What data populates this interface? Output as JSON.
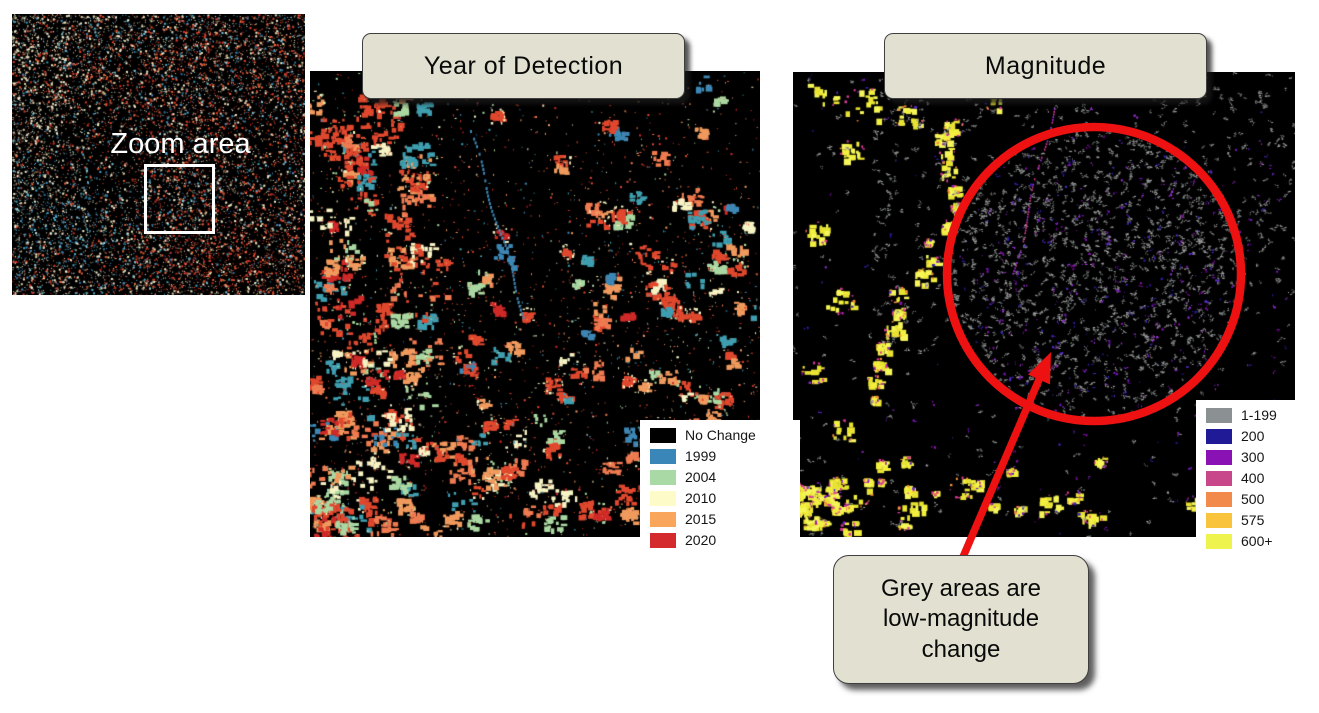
{
  "page": {
    "background": "#ffffff",
    "map_background": "#000000"
  },
  "overview": {
    "label": "Zoom area"
  },
  "panels": {
    "year": {
      "title": "Year of Detection",
      "legend": [
        {
          "label": "No Change",
          "color": "#000000"
        },
        {
          "label": "1999",
          "color": "#3a86b8"
        },
        {
          "label": "2004",
          "color": "#a9d9a4"
        },
        {
          "label": "2010",
          "color": "#fdfcc8"
        },
        {
          "label": "2015",
          "color": "#f9a55c"
        },
        {
          "label": "2020",
          "color": "#d4292d"
        }
      ]
    },
    "magnitude": {
      "title": "Magnitude",
      "legend": [
        {
          "label": "1-199",
          "color": "#8b9192"
        },
        {
          "label": "200",
          "color": "#201a96"
        },
        {
          "label": "300",
          "color": "#8a12b4"
        },
        {
          "label": "400",
          "color": "#c8478b"
        },
        {
          "label": "500",
          "color": "#f28a4c"
        },
        {
          "label": "575",
          "color": "#f9c43b"
        },
        {
          "label": "600+",
          "color": "#eef34d"
        }
      ]
    }
  },
  "callout": {
    "text": "Grey areas are low-magnitude change"
  },
  "annotations": {
    "circle_color": "#ee1111",
    "arrow_color": "#ee1111"
  },
  "style_colors": {
    "title_box_fill": "#e2e0d0",
    "title_box_border": "#3f3f3f"
  }
}
